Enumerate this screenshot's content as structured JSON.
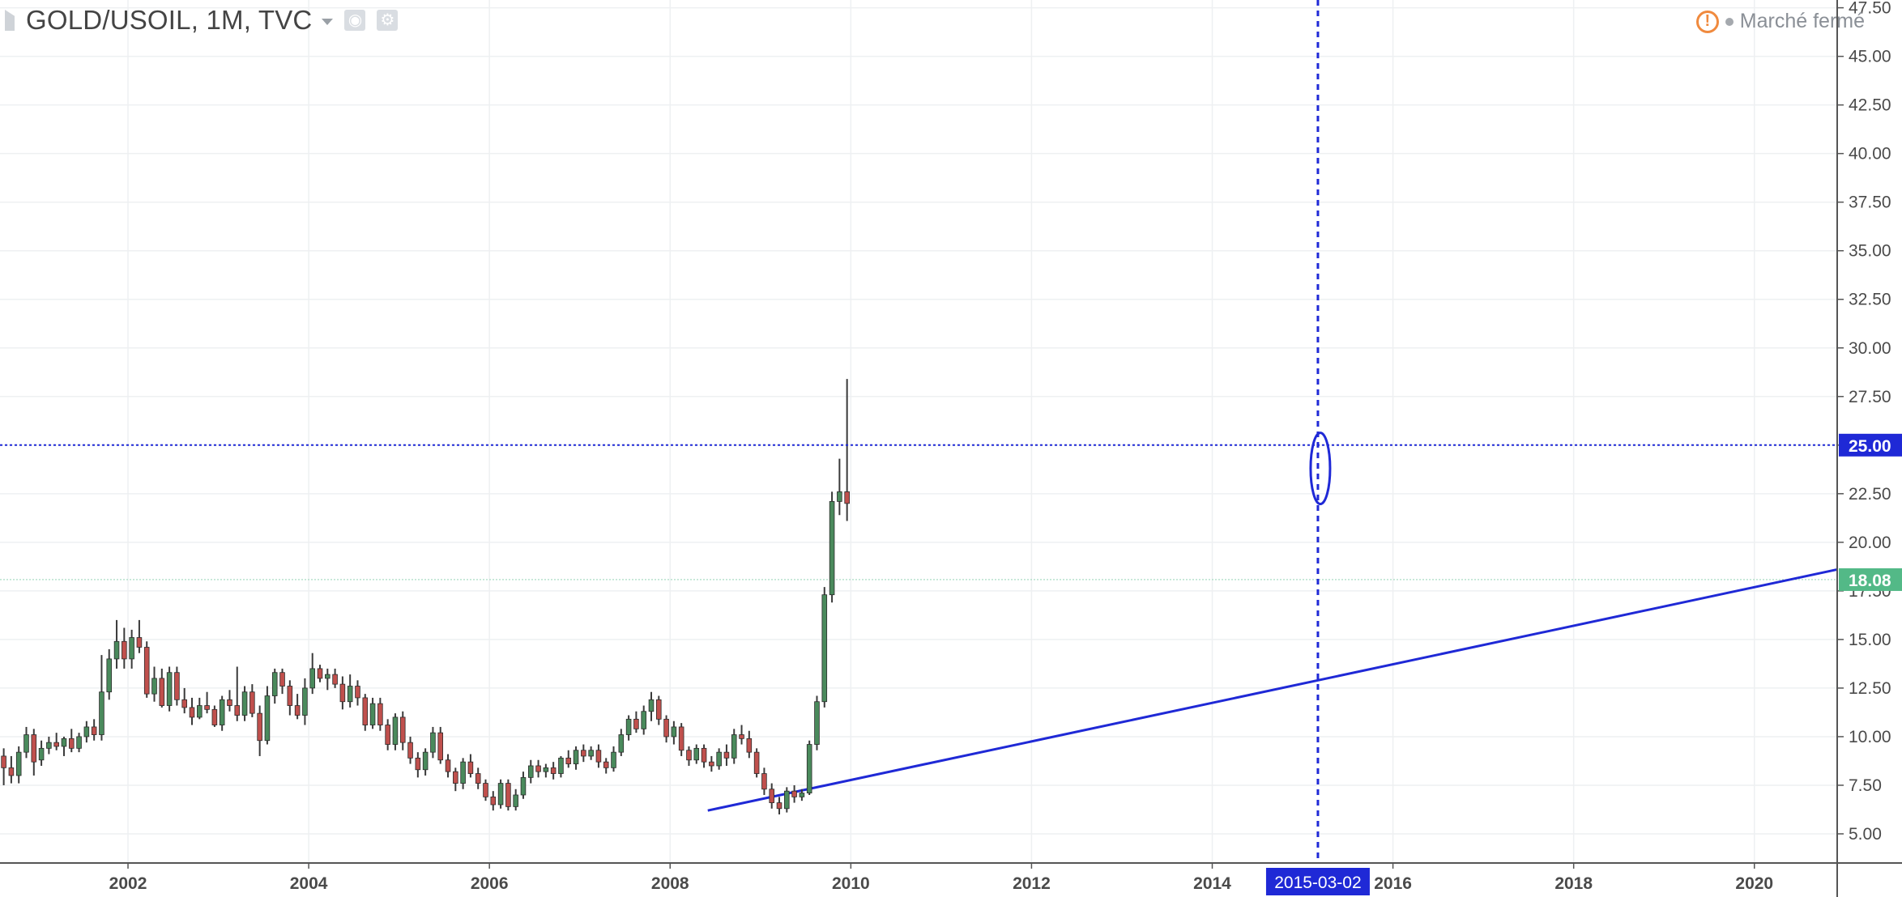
{
  "header": {
    "symbol_title": "GOLD/USOIL, 1M, TVC",
    "market_status": "Marché fermé",
    "warning_glyph": "!",
    "icons": [
      "symbol-flag-icon",
      "dropdown-caret-icon",
      "eye-icon",
      "gear-icon",
      "warning-icon"
    ]
  },
  "colors": {
    "up_candle": "#4a8a5c",
    "down_candle": "#c0504d",
    "wick": "#3a3a3a",
    "drawing": "#1f29d6",
    "last_price_bg": "#53b987",
    "grid": "#eef0f2"
  },
  "chart_data": {
    "type": "candlestick",
    "timeframe": "1M",
    "x_ticks": [
      "2002",
      "2004",
      "2006",
      "2008",
      "2010",
      "2012",
      "2014",
      "2016",
      "2018",
      "2020"
    ],
    "y_ticks": [
      "5.00",
      "7.50",
      "10.00",
      "12.50",
      "15.00",
      "17.50",
      "20.00",
      "22.50",
      "25.00",
      "27.50",
      "30.00",
      "32.50",
      "35.00",
      "37.50",
      "40.00",
      "42.50",
      "45.00",
      "47.50"
    ],
    "ylim": [
      3.5,
      47.9
    ],
    "xlim": [
      "2000-08",
      "2020-12"
    ],
    "grid": true,
    "last_price": "18.08",
    "horizontal_line": {
      "value": 25.0,
      "label": "25.00",
      "style": "dotted"
    },
    "vertical_line": {
      "date": "2015-03-02",
      "label": "2015-03-02",
      "style": "dashed"
    },
    "trendline": {
      "from": {
        "date": "2008-06",
        "value": 6.2
      },
      "to": {
        "date": "2020-12",
        "value": 18.6
      }
    },
    "ellipse_marker": {
      "date": "2015-03",
      "value": 23.8
    },
    "ohlc_key": "open, high, low, close",
    "ohlc": [
      [
        "2000-08",
        9.0,
        9.4,
        7.5,
        8.4
      ],
      [
        "2000-09",
        8.4,
        9.0,
        7.6,
        8.0
      ],
      [
        "2000-10",
        8.0,
        9.5,
        7.6,
        9.2
      ],
      [
        "2000-11",
        9.2,
        10.5,
        8.9,
        10.1
      ],
      [
        "2000-12",
        10.1,
        10.4,
        8.0,
        8.7
      ],
      [
        "2001-01",
        8.8,
        9.8,
        8.5,
        9.4
      ],
      [
        "2001-02",
        9.4,
        10.0,
        9.1,
        9.7
      ],
      [
        "2001-03",
        9.7,
        10.2,
        9.3,
        9.5
      ],
      [
        "2001-04",
        9.5,
        10.0,
        9.0,
        9.9
      ],
      [
        "2001-05",
        9.9,
        10.4,
        9.2,
        9.4
      ],
      [
        "2001-06",
        9.4,
        10.2,
        9.2,
        10.0
      ],
      [
        "2001-07",
        10.0,
        10.8,
        9.7,
        10.5
      ],
      [
        "2001-08",
        10.5,
        10.9,
        9.8,
        10.1
      ],
      [
        "2001-09",
        10.1,
        14.2,
        9.8,
        12.3
      ],
      [
        "2001-10",
        12.3,
        14.5,
        11.9,
        14.0
      ],
      [
        "2001-11",
        14.0,
        16.0,
        13.5,
        14.9
      ],
      [
        "2001-12",
        14.9,
        15.6,
        13.5,
        14.0
      ],
      [
        "2002-01",
        14.0,
        15.5,
        13.5,
        15.1
      ],
      [
        "2002-02",
        15.1,
        16.0,
        14.3,
        14.6
      ],
      [
        "2002-03",
        14.6,
        14.9,
        12.0,
        12.2
      ],
      [
        "2002-04",
        12.2,
        13.6,
        11.8,
        13.0
      ],
      [
        "2002-05",
        13.0,
        13.5,
        11.5,
        11.6
      ],
      [
        "2002-06",
        11.6,
        13.6,
        11.3,
        13.3
      ],
      [
        "2002-07",
        13.3,
        13.6,
        11.6,
        11.9
      ],
      [
        "2002-08",
        11.9,
        12.5,
        11.2,
        11.5
      ],
      [
        "2002-09",
        11.5,
        12.0,
        10.6,
        11.0
      ],
      [
        "2002-10",
        11.0,
        12.0,
        10.9,
        11.6
      ],
      [
        "2002-11",
        11.6,
        12.3,
        11.2,
        11.4
      ],
      [
        "2002-12",
        11.4,
        11.6,
        10.5,
        10.6
      ],
      [
        "2003-01",
        10.6,
        12.1,
        10.3,
        11.9
      ],
      [
        "2003-02",
        11.9,
        12.4,
        11.3,
        11.6
      ],
      [
        "2003-03",
        11.6,
        13.6,
        10.8,
        11.1
      ],
      [
        "2003-04",
        11.1,
        12.6,
        10.8,
        12.3
      ],
      [
        "2003-05",
        12.3,
        12.7,
        11.0,
        11.2
      ],
      [
        "2003-06",
        11.2,
        11.6,
        9.0,
        9.8
      ],
      [
        "2003-07",
        9.8,
        12.6,
        9.6,
        12.1
      ],
      [
        "2003-08",
        12.1,
        13.5,
        11.7,
        13.3
      ],
      [
        "2003-09",
        13.3,
        13.5,
        12.2,
        12.6
      ],
      [
        "2003-10",
        12.6,
        12.9,
        11.1,
        11.6
      ],
      [
        "2003-11",
        11.6,
        12.2,
        10.9,
        11.1
      ],
      [
        "2003-12",
        11.1,
        13.0,
        10.6,
        12.5
      ],
      [
        "2004-01",
        12.5,
        14.3,
        12.2,
        13.5
      ],
      [
        "2004-02",
        13.5,
        13.7,
        12.8,
        13.0
      ],
      [
        "2004-03",
        13.0,
        13.5,
        12.4,
        13.2
      ],
      [
        "2004-04",
        13.2,
        13.5,
        12.5,
        12.7
      ],
      [
        "2004-05",
        12.7,
        13.1,
        11.4,
        11.8
      ],
      [
        "2004-06",
        11.8,
        13.2,
        11.5,
        12.6
      ],
      [
        "2004-07",
        12.6,
        12.9,
        11.6,
        12.0
      ],
      [
        "2004-08",
        12.0,
        12.2,
        10.3,
        10.6
      ],
      [
        "2004-09",
        10.6,
        12.0,
        10.4,
        11.7
      ],
      [
        "2004-10",
        11.7,
        12.0,
        10.3,
        10.6
      ],
      [
        "2004-11",
        10.6,
        10.9,
        9.3,
        9.6
      ],
      [
        "2004-12",
        9.6,
        11.2,
        9.3,
        11.0
      ],
      [
        "2005-01",
        11.0,
        11.3,
        9.3,
        9.7
      ],
      [
        "2005-02",
        9.7,
        10.0,
        8.6,
        8.9
      ],
      [
        "2005-03",
        8.9,
        9.2,
        7.9,
        8.3
      ],
      [
        "2005-04",
        8.3,
        9.4,
        8.0,
        9.2
      ],
      [
        "2005-05",
        9.2,
        10.5,
        8.9,
        10.2
      ],
      [
        "2005-06",
        10.2,
        10.5,
        8.6,
        8.8
      ],
      [
        "2005-07",
        8.8,
        9.1,
        7.9,
        8.2
      ],
      [
        "2005-08",
        8.2,
        8.4,
        7.2,
        7.6
      ],
      [
        "2005-09",
        7.6,
        8.9,
        7.3,
        8.7
      ],
      [
        "2005-10",
        8.7,
        9.1,
        7.9,
        8.1
      ],
      [
        "2005-11",
        8.1,
        8.4,
        7.3,
        7.6
      ],
      [
        "2005-12",
        7.6,
        7.8,
        6.7,
        6.9
      ],
      [
        "2006-01",
        6.9,
        7.2,
        6.2,
        6.5
      ],
      [
        "2006-02",
        6.5,
        7.8,
        6.3,
        7.6
      ],
      [
        "2006-03",
        7.6,
        7.8,
        6.2,
        6.4
      ],
      [
        "2006-04",
        6.4,
        7.3,
        6.2,
        7.0
      ],
      [
        "2006-05",
        7.0,
        8.2,
        6.8,
        7.9
      ],
      [
        "2006-06",
        7.9,
        8.8,
        7.6,
        8.5
      ],
      [
        "2006-07",
        8.5,
        8.8,
        7.9,
        8.2
      ],
      [
        "2006-08",
        8.2,
        8.6,
        7.9,
        8.4
      ],
      [
        "2006-09",
        8.4,
        8.7,
        7.8,
        8.1
      ],
      [
        "2006-10",
        8.1,
        9.0,
        7.9,
        8.9
      ],
      [
        "2006-11",
        8.9,
        9.3,
        8.4,
        8.6
      ],
      [
        "2006-12",
        8.6,
        9.5,
        8.3,
        9.3
      ],
      [
        "2007-01",
        9.3,
        9.6,
        8.7,
        9.0
      ],
      [
        "2007-02",
        9.0,
        9.5,
        8.8,
        9.3
      ],
      [
        "2007-03",
        9.3,
        9.6,
        8.4,
        8.7
      ],
      [
        "2007-04",
        8.7,
        8.9,
        8.1,
        8.4
      ],
      [
        "2007-05",
        8.4,
        9.5,
        8.2,
        9.2
      ],
      [
        "2007-06",
        9.2,
        10.4,
        9.0,
        10.1
      ],
      [
        "2007-07",
        10.1,
        11.1,
        9.8,
        10.9
      ],
      [
        "2007-08",
        10.9,
        11.3,
        10.2,
        10.4
      ],
      [
        "2007-09",
        10.4,
        11.6,
        10.1,
        11.3
      ],
      [
        "2007-10",
        11.3,
        12.3,
        10.8,
        11.9
      ],
      [
        "2007-11",
        11.9,
        12.1,
        10.6,
        10.9
      ],
      [
        "2007-12",
        10.9,
        11.1,
        9.7,
        10.0
      ],
      [
        "2008-01",
        10.0,
        10.8,
        9.6,
        10.5
      ],
      [
        "2008-02",
        10.5,
        10.7,
        9.0,
        9.3
      ],
      [
        "2008-03",
        9.3,
        9.5,
        8.5,
        8.8
      ],
      [
        "2008-04",
        8.8,
        9.6,
        8.6,
        9.4
      ],
      [
        "2008-05",
        9.4,
        9.6,
        8.4,
        8.7
      ],
      [
        "2008-06",
        8.7,
        9.0,
        8.2,
        8.5
      ],
      [
        "2008-07",
        8.5,
        9.4,
        8.3,
        9.2
      ],
      [
        "2008-08",
        9.2,
        9.6,
        8.5,
        8.9
      ],
      [
        "2008-09",
        8.9,
        10.4,
        8.6,
        10.1
      ],
      [
        "2008-10",
        10.1,
        10.6,
        9.6,
        9.9
      ],
      [
        "2008-11",
        9.9,
        10.3,
        8.9,
        9.2
      ],
      [
        "2008-12",
        9.2,
        9.4,
        7.9,
        8.1
      ],
      [
        "2009-01",
        8.1,
        8.4,
        7.0,
        7.3
      ],
      [
        "2009-02",
        7.3,
        7.6,
        6.3,
        6.6
      ],
      [
        "2009-03",
        6.6,
        6.9,
        6.0,
        6.3
      ],
      [
        "2009-04",
        6.3,
        7.4,
        6.1,
        7.2
      ],
      [
        "2009-05",
        7.2,
        7.5,
        6.6,
        6.9
      ],
      [
        "2009-06",
        6.9,
        7.3,
        6.7,
        7.1
      ],
      [
        "2009-07",
        7.1,
        9.8,
        7.0,
        9.6
      ],
      [
        "2009-08",
        9.6,
        12.1,
        9.3,
        11.8
      ],
      [
        "2009-09",
        11.8,
        17.7,
        11.5,
        17.3
      ],
      [
        "2009-10",
        17.3,
        22.6,
        16.9,
        22.1
      ],
      [
        "2009-11",
        22.1,
        24.3,
        21.4,
        22.6
      ],
      [
        "2009-12",
        22.6,
        28.4,
        21.1,
        22.0
      ]
    ]
  }
}
